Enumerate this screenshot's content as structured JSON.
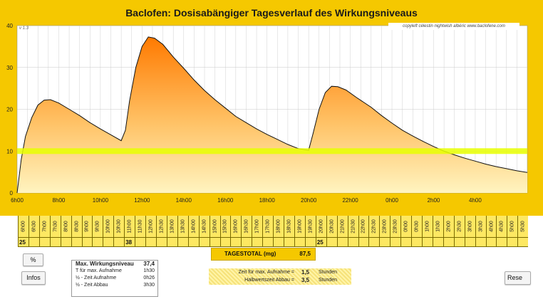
{
  "title": "Baclofen: Dosisabängiger Tagesverlauf des Wirkungsniveaus",
  "version": "v 1.3",
  "copyright": "copyleft  célestin  nightwish  albéric  www.baclofene.com",
  "chart_data": {
    "type": "area",
    "title": "Baclofen: Dosisabängiger Tagesverlauf des Wirkungsniveaus",
    "xlabel": "",
    "ylabel": "",
    "ylim": [
      0,
      40
    ],
    "xlim": [
      6,
      30.5
    ],
    "yticks": [
      "0",
      "10",
      "20",
      "30",
      "40"
    ],
    "xticks": [
      {
        "x": 6,
        "label": "6h00"
      },
      {
        "x": 8,
        "label": "8h00"
      },
      {
        "x": 10,
        "label": "10h00"
      },
      {
        "x": 12,
        "label": "12h00"
      },
      {
        "x": 14,
        "label": "14h00"
      },
      {
        "x": 16,
        "label": "16h00"
      },
      {
        "x": 18,
        "label": "18h00"
      },
      {
        "x": 20,
        "label": "20h00"
      },
      {
        "x": 22,
        "label": "22h00"
      },
      {
        "x": 24,
        "label": "0h00"
      },
      {
        "x": 26,
        "label": "2h00"
      },
      {
        "x": 28,
        "label": "4h00"
      }
    ],
    "reference_line": 10,
    "grid": true,
    "series": [
      {
        "values": [
          [
            6.0,
            0
          ],
          [
            6.2,
            8
          ],
          [
            6.4,
            13.5
          ],
          [
            6.7,
            18
          ],
          [
            7.0,
            21
          ],
          [
            7.3,
            22.2
          ],
          [
            7.6,
            22.3
          ],
          [
            8.0,
            21.5
          ],
          [
            8.5,
            20.0
          ],
          [
            9.0,
            18.5
          ],
          [
            9.5,
            16.8
          ],
          [
            10.0,
            15.3
          ],
          [
            10.5,
            13.9
          ],
          [
            11.0,
            12.5
          ],
          [
            11.2,
            15
          ],
          [
            11.4,
            22
          ],
          [
            11.7,
            30
          ],
          [
            12.0,
            35
          ],
          [
            12.3,
            37.3
          ],
          [
            12.6,
            37.0
          ],
          [
            13.0,
            35.5
          ],
          [
            13.5,
            32.5
          ],
          [
            14.0,
            29.8
          ],
          [
            14.5,
            27.0
          ],
          [
            15.0,
            24.5
          ],
          [
            15.5,
            22.3
          ],
          [
            16.0,
            20.3
          ],
          [
            16.5,
            18.3
          ],
          [
            17.0,
            16.8
          ],
          [
            17.5,
            15.3
          ],
          [
            18.0,
            14.0
          ],
          [
            18.5,
            12.8
          ],
          [
            19.0,
            11.6
          ],
          [
            19.5,
            10.6
          ],
          [
            20.0,
            10.2
          ],
          [
            20.2,
            14
          ],
          [
            20.5,
            20
          ],
          [
            20.8,
            24
          ],
          [
            21.1,
            25.5
          ],
          [
            21.4,
            25.4
          ],
          [
            21.8,
            24.6
          ],
          [
            22.3,
            22.8
          ],
          [
            23.0,
            20.5
          ],
          [
            23.5,
            18.5
          ],
          [
            24.0,
            16.7
          ],
          [
            24.5,
            15.0
          ],
          [
            25.0,
            13.6
          ],
          [
            25.5,
            12.3
          ],
          [
            26.0,
            11.1
          ],
          [
            26.5,
            10.0
          ],
          [
            27.0,
            9.1
          ],
          [
            27.5,
            8.3
          ],
          [
            28.0,
            7.6
          ],
          [
            28.5,
            6.9
          ],
          [
            29.0,
            6.3
          ],
          [
            29.5,
            5.8
          ],
          [
            30.0,
            5.3
          ],
          [
            30.5,
            4.9
          ]
        ]
      }
    ]
  },
  "schedule": {
    "times": [
      "6h00",
      "6h30",
      "7h00",
      "7h30",
      "8h00",
      "8h30",
      "9h00",
      "9h30",
      "10h00",
      "10h30",
      "11h00",
      "11h30",
      "12h00",
      "12h30",
      "13h00",
      "13h30",
      "14h00",
      "14h30",
      "15h00",
      "15h30",
      "16h00",
      "16h30",
      "17h00",
      "17h30",
      "18h00",
      "18h30",
      "19h00",
      "19h30",
      "20h00",
      "20h30",
      "21h00",
      "21h30",
      "22h00",
      "22h30",
      "23h00",
      "23h30",
      "0h00",
      "0h30",
      "1h00",
      "1h30",
      "2h00",
      "2h30",
      "3h00",
      "3h30",
      "4h00",
      "4h30",
      "5h00",
      "5h30"
    ],
    "doses": [
      "25",
      "",
      "",
      "",
      "",
      "",
      "",
      "",
      "",
      "",
      "38",
      "",
      "",
      "",
      "",
      "",
      "",
      "",
      "",
      "",
      "",
      "",
      "",
      "",
      "",
      "",
      "",
      "",
      "25",
      "",
      "",
      "",
      "",
      "",
      "",
      "",
      "",
      "",
      "",
      "",
      "",
      "",
      "",
      "",
      "",
      "",
      "",
      ""
    ]
  },
  "total": {
    "label": "TAGESTOTAL (mg)",
    "value": "87,5"
  },
  "buttons": {
    "percent": "%",
    "infos": "Infos",
    "reset": "Rese"
  },
  "stats": {
    "header": "Max. Wirkungsniveau",
    "max": "37,4",
    "rows": [
      {
        "label": "T für max. Aufnahme",
        "value": "1h30"
      },
      {
        "label": "½ - Zeit Aufnahme",
        "value": "0h26"
      },
      {
        "label": "½ - Zeit Abbau",
        "value": "3h30"
      }
    ]
  },
  "params": [
    {
      "label": "Zeit für max. Aufnahme  =",
      "value": "1,5",
      "unit": "Stunden"
    },
    {
      "label": "Halbwertszeit Abbau  =",
      "value": "3,5",
      "unit": "Stunden"
    }
  ],
  "colors": {
    "frame": "#f5c800",
    "curve_top": "#ff7a00",
    "curve_bottom": "#fff4c0",
    "reference": "#e8ff00"
  }
}
